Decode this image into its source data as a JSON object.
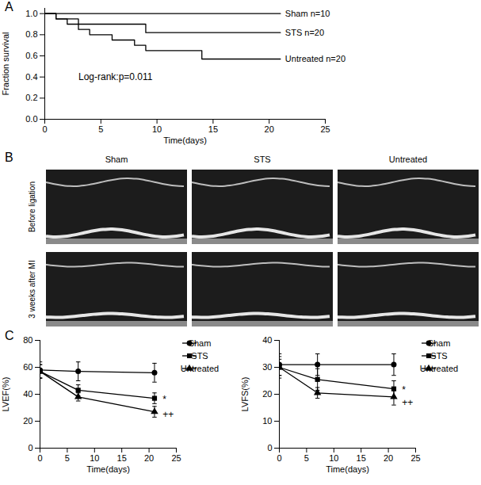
{
  "panel_labels": [
    "A",
    "B",
    "C"
  ],
  "panel_b": {
    "columns": [
      "Sham",
      "STS",
      "Untreated"
    ],
    "rows": [
      "Before ligation",
      "3 weeks after MI"
    ]
  },
  "chart_data": [
    {
      "type": "step",
      "x_label": "Time(days)",
      "y_label": "Fraction survival",
      "xlim": [
        0,
        25
      ],
      "xticks": [
        0,
        5,
        10,
        15,
        20,
        25
      ],
      "ylim": [
        0,
        1.05
      ],
      "yticks": [
        {
          "value": 0,
          "label": "0.0"
        },
        0.2,
        0.4,
        0.6,
        0.8,
        {
          "value": 1,
          "label": "1.0"
        }
      ],
      "series": [
        {
          "name": "Sham n=10",
          "color": "#000000",
          "x": [
            0,
            21
          ],
          "values": [
            1,
            1
          ]
        },
        {
          "name": "STS n=20",
          "color": "#000000",
          "x": [
            0,
            1,
            3,
            9,
            21
          ],
          "values": [
            1,
            0.95,
            0.9,
            0.82,
            0.82
          ]
        },
        {
          "name": "Untreated n=20",
          "color": "#000000",
          "x": [
            0,
            1,
            2,
            3,
            4,
            6,
            8,
            9,
            14,
            21
          ],
          "values": [
            1,
            0.95,
            0.9,
            0.85,
            0.8,
            0.75,
            0.7,
            0.65,
            0.57,
            0.57
          ]
        }
      ],
      "annotations": [
        {
          "text": "Log-rank:p=0.011",
          "x": 3,
          "y": 0.4
        }
      ]
    },
    {
      "type": "line",
      "x_label": "Time(days)",
      "y_label": "LVEF(%)",
      "xlim": [
        0,
        25
      ],
      "xticks": [
        0,
        5,
        10,
        15,
        20,
        25
      ],
      "ylim": [
        0,
        80
      ],
      "yticks": [
        0,
        20,
        40,
        60,
        80
      ],
      "legend": "right",
      "series": [
        {
          "name": "Sham",
          "color": "#000000",
          "marker": "circle",
          "x": [
            0,
            7,
            21
          ],
          "values": [
            58,
            57,
            56
          ],
          "error": [
            6,
            7,
            7
          ]
        },
        {
          "name": "STS",
          "color": "#000000",
          "marker": "square",
          "x": [
            0,
            7,
            21
          ],
          "values": [
            57,
            43,
            37
          ],
          "error": [
            5,
            4,
            4
          ]
        },
        {
          "name": "Untreated",
          "color": "#000000",
          "marker": "triangle",
          "x": [
            0,
            7,
            21
          ],
          "values": [
            57,
            38,
            27
          ],
          "error": [
            5,
            3,
            4
          ]
        }
      ],
      "annotations": [
        {
          "text": "*",
          "x": 22.5,
          "y": 36
        },
        {
          "text": "++",
          "x": 22.5,
          "y": 25
        }
      ]
    },
    {
      "type": "line",
      "x_label": "Time(days)",
      "y_label": "LVFS(%)",
      "xlim": [
        0,
        25
      ],
      "xticks": [
        0,
        5,
        10,
        15,
        20,
        25
      ],
      "ylim": [
        0,
        40
      ],
      "yticks": [
        0,
        10,
        20,
        30,
        40
      ],
      "legend": "right",
      "series": [
        {
          "name": "Sham",
          "color": "#000000",
          "marker": "circle",
          "x": [
            0,
            7,
            21
          ],
          "values": [
            31,
            31,
            31
          ],
          "error": [
            4,
            4,
            4
          ]
        },
        {
          "name": "STS",
          "color": "#000000",
          "marker": "square",
          "x": [
            0,
            7,
            21
          ],
          "values": [
            30,
            25.5,
            22
          ],
          "error": [
            4,
            4,
            3
          ]
        },
        {
          "name": "Untreated",
          "color": "#000000",
          "marker": "triangle",
          "x": [
            0,
            7,
            21
          ],
          "values": [
            30,
            20.5,
            19
          ],
          "error": [
            3,
            2,
            3
          ]
        }
      ],
      "annotations": [
        {
          "text": "*",
          "x": 22.5,
          "y": 21.5
        },
        {
          "text": "++",
          "x": 22.5,
          "y": 17
        }
      ]
    }
  ]
}
